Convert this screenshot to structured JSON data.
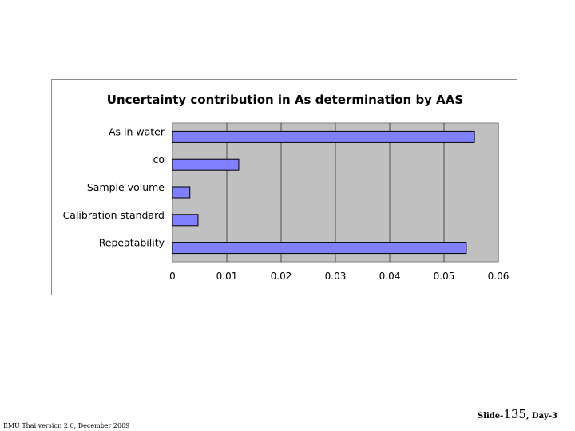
{
  "chart_data": {
    "type": "bar",
    "orientation": "horizontal",
    "title": "Uncertainty contribution in As determination by AAS",
    "categories": [
      "As in water",
      "co",
      "Sample volume",
      "Calibration standard",
      "Repeatability"
    ],
    "values": [
      0.0556,
      0.0122,
      0.0032,
      0.0047,
      0.0541
    ],
    "xlim": [
      0,
      0.06
    ],
    "xticks": [
      "0",
      "0.01",
      "0.02",
      "0.03",
      "0.04",
      "0.05",
      "0.06"
    ],
    "xtick_values": [
      0,
      0.01,
      0.02,
      0.03,
      0.04,
      0.05,
      0.06
    ],
    "grid": true,
    "legend": "none",
    "colors": {
      "bar_fill": "#8080ff",
      "bar_stroke": "#000000",
      "plot_background": "#c0c0c0",
      "gridline": "#000000"
    }
  },
  "footer": {
    "left": "EMU Thai version 2.0, December 2009",
    "slide_prefix": "Slide-",
    "slide_number": "135",
    "slide_suffix": ", Day-3"
  }
}
